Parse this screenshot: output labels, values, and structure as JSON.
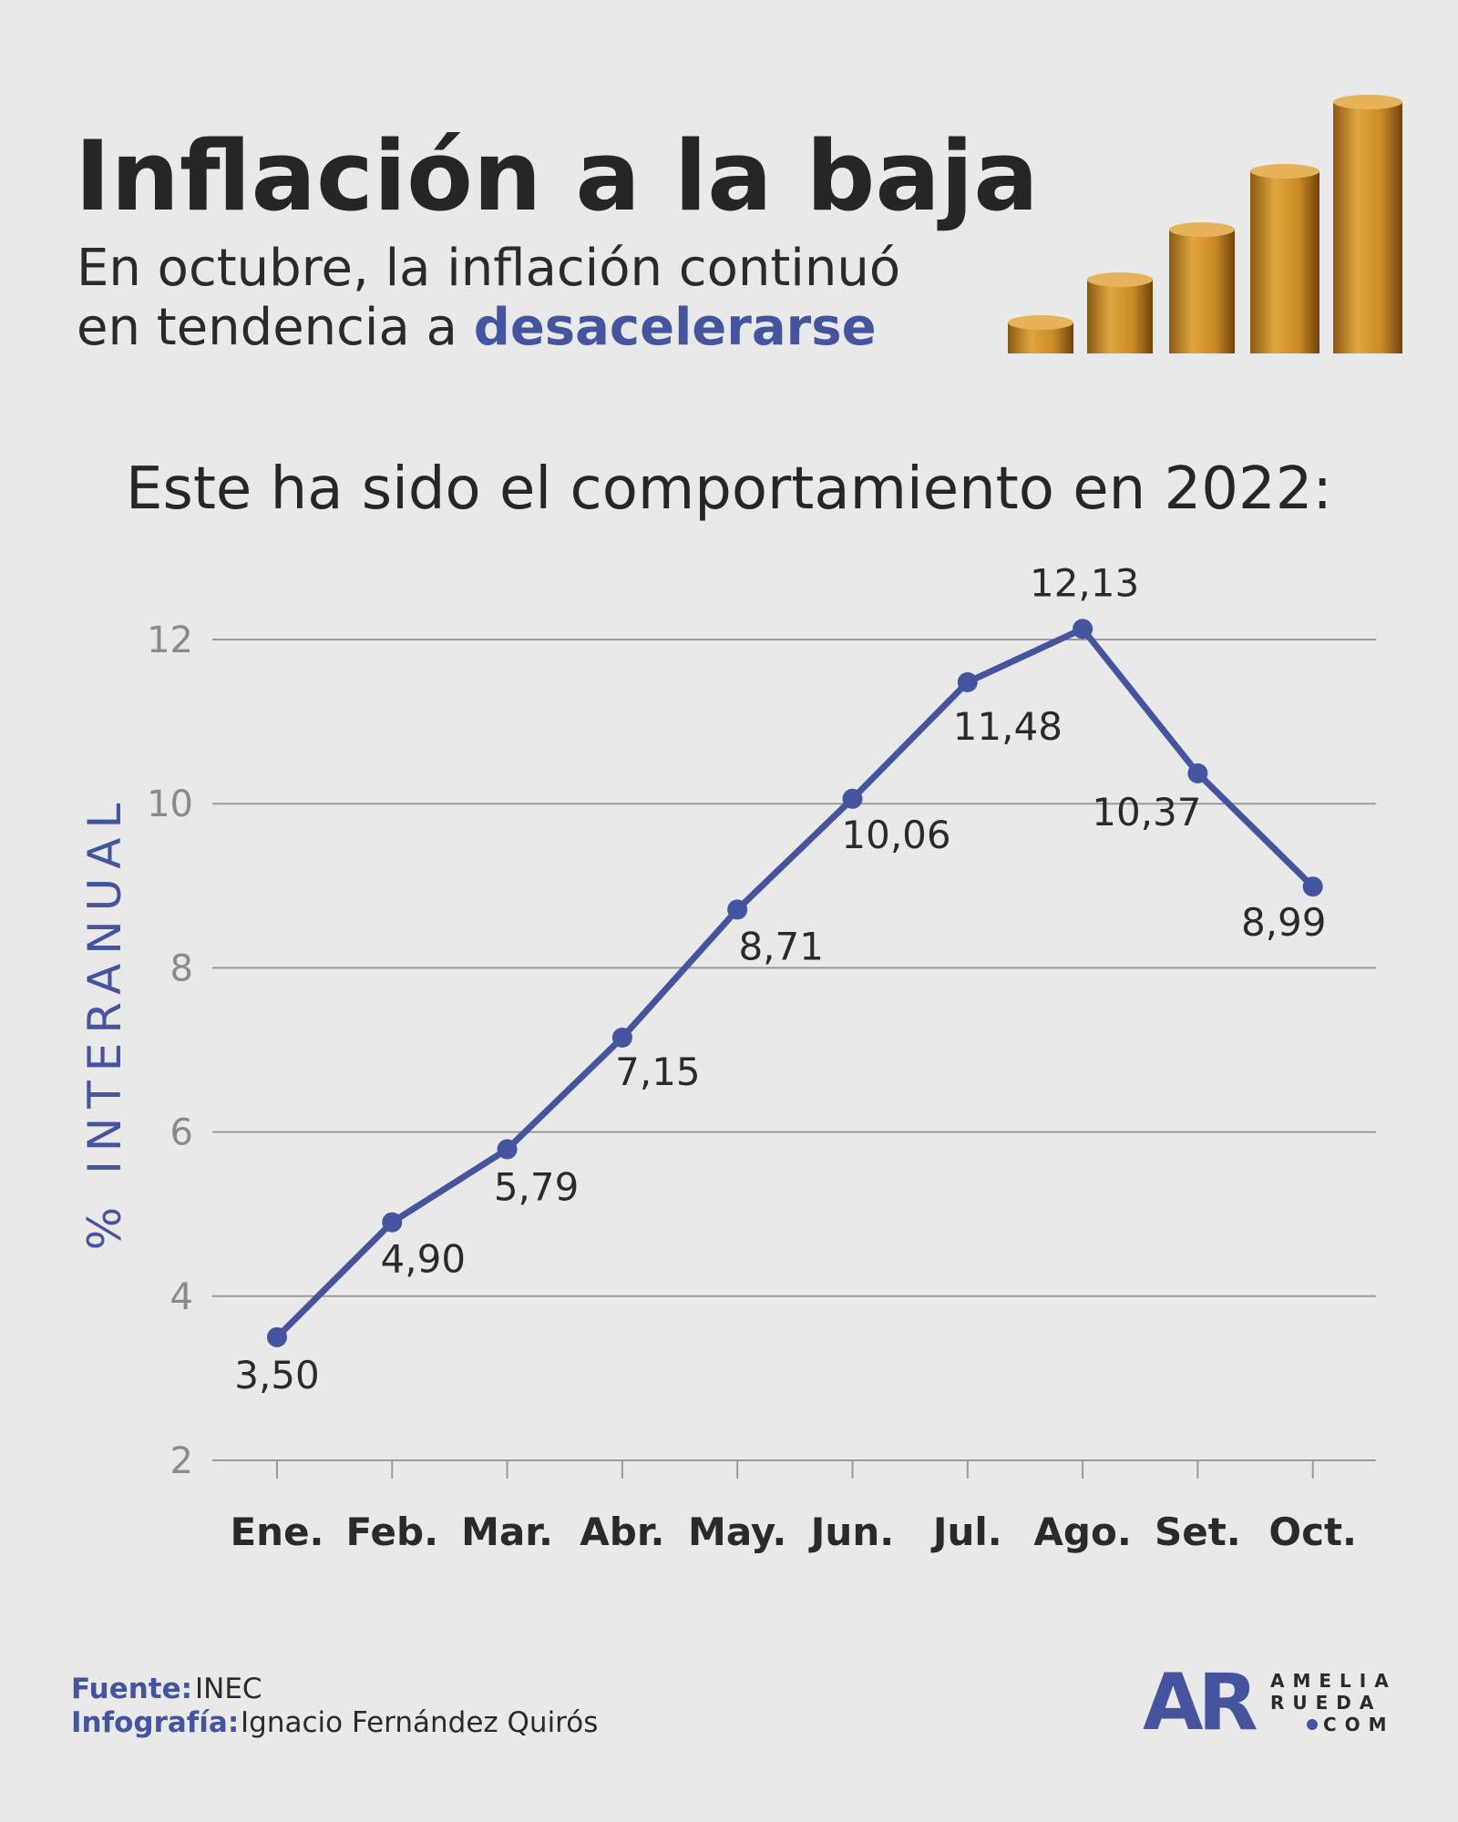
{
  "chart_data": {
    "type": "line",
    "title": "Inflación a la baja",
    "subtitle_line1": "En octubre, la inflación continuó",
    "subtitle_line2": "en tendencia a ",
    "subtitle_highlight": "desacelerarse",
    "heading": "Este ha sido el comportamiento en 2022:",
    "ylabel": "% INTERANUAL",
    "categories": [
      "Ene.",
      "Feb.",
      "Mar.",
      "Abr.",
      "May.",
      "Jun.",
      "Jul.",
      "Ago.",
      "Set.",
      "Oct."
    ],
    "series": [
      {
        "name": "Inflación interanual",
        "color": "#44549e",
        "values": [
          3.5,
          4.9,
          5.79,
          7.15,
          8.71,
          10.06,
          11.48,
          12.13,
          10.37,
          8.99
        ],
        "value_labels": [
          "3,50",
          "4,90",
          "5,79",
          "7,15",
          "8,71",
          "10,06",
          "11,48",
          "12,13",
          "10,37",
          "8,99"
        ]
      }
    ],
    "ylim": [
      2,
      12
    ],
    "yticks": [
      2,
      4,
      6,
      8,
      10,
      12
    ],
    "grid": true,
    "source_label": "Fuente:",
    "source": "INEC",
    "credit_label": "Infografía:",
    "credit": "Ignacio Fernández Quirós",
    "logo": "AR",
    "logo_line1": "AMELIA",
    "logo_line2": "RUEDA",
    "logo_line3": "COM"
  }
}
